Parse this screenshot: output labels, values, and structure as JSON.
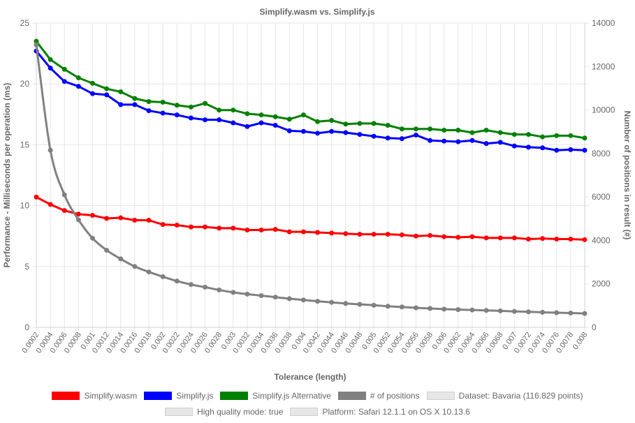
{
  "chart_data": {
    "type": "line",
    "title": "Simplify.wasm vs. Simplify.js",
    "xlabel": "Tolerance (length)",
    "ylabel_left": "Performance - Milliseconds per operation (ms)",
    "ylabel_right": "Number of positions in result (#)",
    "ylim_left": [
      0,
      25
    ],
    "yticks_left": [
      "0",
      "5",
      "10",
      "15",
      "20",
      "25"
    ],
    "ylim_right": [
      0,
      14000
    ],
    "yticks_right": [
      "0",
      "2000",
      "4000",
      "6000",
      "8000",
      "10000",
      "12000",
      "14000"
    ],
    "grid": true,
    "legend_position": "bottom",
    "categories": [
      "0.0002",
      "0.0004",
      "0.0006",
      "0.0008",
      "0.001",
      "0.0012",
      "0.0014",
      "0.0016",
      "0.0018",
      "0.002",
      "0.0022",
      "0.0024",
      "0.0026",
      "0.0028",
      "0.003",
      "0.0032",
      "0.0034",
      "0.0036",
      "0.0038",
      "0.004",
      "0.0042",
      "0.0044",
      "0.0046",
      "0.0048",
      "0.005",
      "0.0052",
      "0.0054",
      "0.0056",
      "0.0058",
      "0.006",
      "0.0062",
      "0.0064",
      "0.0066",
      "0.0068",
      "0.007",
      "0.0072",
      "0.0074",
      "0.0076",
      "0.0078",
      "0.008"
    ],
    "series": [
      {
        "name": "Simplify.wasm",
        "color": "#ff0000",
        "axis": "left",
        "curved": false,
        "values": [
          10.7,
          10.1,
          9.6,
          9.3,
          9.2,
          8.95,
          9.0,
          8.8,
          8.8,
          8.45,
          8.4,
          8.25,
          8.25,
          8.15,
          8.15,
          8.0,
          8.0,
          8.05,
          7.85,
          7.85,
          7.8,
          7.75,
          7.7,
          7.65,
          7.65,
          7.65,
          7.6,
          7.5,
          7.55,
          7.45,
          7.4,
          7.45,
          7.35,
          7.35,
          7.35,
          7.25,
          7.3,
          7.25,
          7.25,
          7.2
        ]
      },
      {
        "name": "Simplify.js",
        "color": "#0000ff",
        "axis": "left",
        "curved": false,
        "values": [
          22.7,
          21.3,
          20.2,
          19.8,
          19.2,
          19.1,
          18.3,
          18.3,
          17.8,
          17.6,
          17.45,
          17.2,
          17.05,
          17.05,
          16.8,
          16.5,
          16.8,
          16.6,
          16.15,
          16.1,
          15.95,
          16.1,
          16.0,
          15.85,
          15.7,
          15.55,
          15.5,
          15.8,
          15.35,
          15.3,
          15.25,
          15.35,
          15.1,
          15.2,
          14.9,
          14.8,
          14.75,
          14.55,
          14.6,
          14.55
        ]
      },
      {
        "name": "Simplify.js Alternative",
        "color": "#008000",
        "axis": "left",
        "curved": false,
        "values": [
          23.5,
          22.0,
          21.2,
          20.5,
          20.05,
          19.6,
          19.35,
          18.8,
          18.55,
          18.5,
          18.25,
          18.1,
          18.4,
          17.85,
          17.85,
          17.55,
          17.45,
          17.3,
          17.1,
          17.45,
          16.9,
          17.0,
          16.7,
          16.75,
          16.75,
          16.6,
          16.3,
          16.3,
          16.3,
          16.2,
          16.2,
          16.0,
          16.2,
          16.0,
          15.85,
          15.85,
          15.65,
          15.75,
          15.75,
          15.55
        ]
      },
      {
        "name": "# of positions",
        "color": "#808080",
        "axis": "right",
        "curved": true,
        "values": [
          13000,
          8150,
          6100,
          4950,
          4100,
          3550,
          3150,
          2800,
          2550,
          2330,
          2130,
          1970,
          1850,
          1720,
          1610,
          1530,
          1460,
          1390,
          1320,
          1260,
          1200,
          1150,
          1100,
          1060,
          1020,
          970,
          940,
          900,
          870,
          840,
          820,
          800,
          780,
          760,
          735,
          715,
          695,
          675,
          660,
          640
        ]
      }
    ],
    "info_entries": [
      "Dataset: Bavaria (116.829 points)",
      "High quality mode: true",
      "Platform: Safari 12.1.1 on OS X 10.13.6"
    ]
  }
}
